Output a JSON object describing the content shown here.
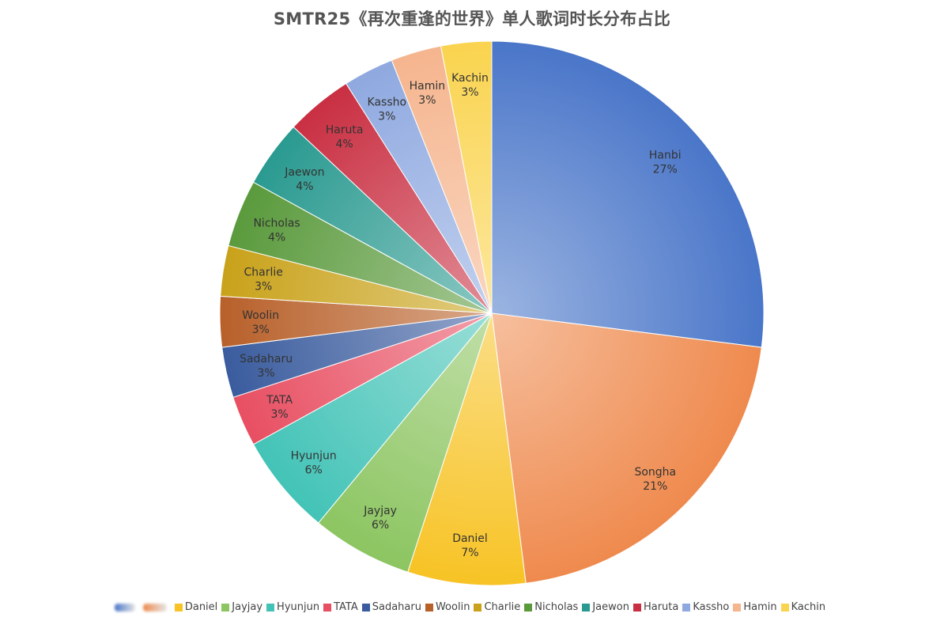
{
  "chart_data": {
    "type": "pie",
    "title": "SMTR25《再次重逢的世界》单人歌词时长分布占比",
    "slices": [
      {
        "name": "Hanbi",
        "value": 27,
        "label": "27%",
        "color": "#4a76c9"
      },
      {
        "name": "Songha",
        "value": 21,
        "label": "21%",
        "color": "#ef8a4e"
      },
      {
        "name": "Daniel",
        "value": 7,
        "label": "7%",
        "color": "#f7c325"
      },
      {
        "name": "Jayjay",
        "value": 6,
        "label": "6%",
        "color": "#8cc561"
      },
      {
        "name": "Hyunjun",
        "value": 6,
        "label": "6%",
        "color": "#43c3b7"
      },
      {
        "name": "TATA",
        "value": 3,
        "label": "3%",
        "color": "#e84f62"
      },
      {
        "name": "Sadaharu",
        "value": 3,
        "label": "3%",
        "color": "#3a5c9e"
      },
      {
        "name": "Woolin",
        "value": 3,
        "label": "3%",
        "color": "#b8602a"
      },
      {
        "name": "Charlie",
        "value": 3,
        "label": "3%",
        "color": "#c9a21a"
      },
      {
        "name": "Nicholas",
        "value": 4,
        "label": "4%",
        "color": "#5a9a3c"
      },
      {
        "name": "Jaewon",
        "value": 4,
        "label": "4%",
        "color": "#2a9a90"
      },
      {
        "name": "Haruta",
        "value": 4,
        "label": "4%",
        "color": "#c92f42"
      },
      {
        "name": "Kassho",
        "value": 3,
        "label": "3%",
        "color": "#8fa9e0"
      },
      {
        "name": "Hamin",
        "value": 3,
        "label": "3%",
        "color": "#f5b58e"
      },
      {
        "name": "Kachin",
        "value": 3,
        "label": "3%",
        "color": "#fad44f"
      }
    ],
    "legend_position": "bottom",
    "legend_obscured_entries": 2
  }
}
